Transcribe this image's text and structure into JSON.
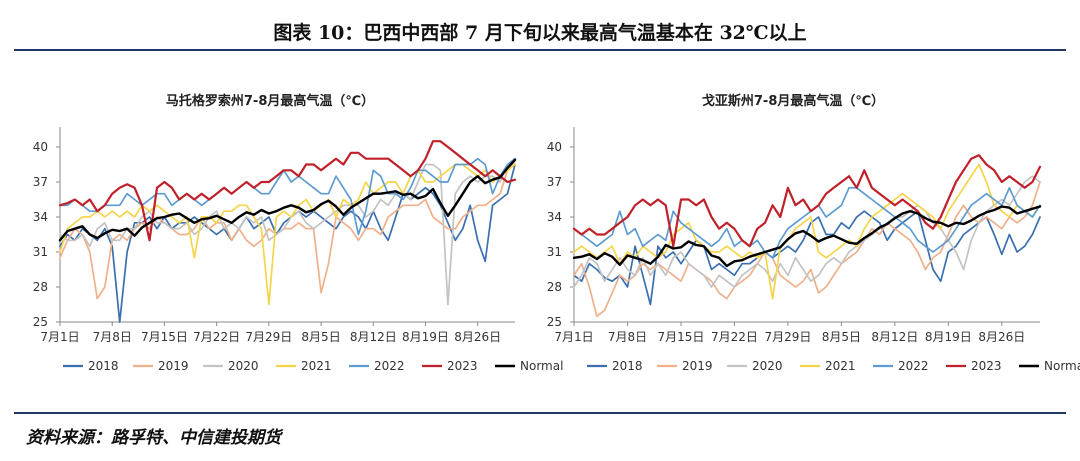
{
  "figure": {
    "title": "图表 10：巴西中西部 7 月下旬以来最高气温基本在 32℃以上",
    "source": "资料来源：路孚特、中信建投期货"
  },
  "colors": {
    "2018": "#3a6fb0",
    "2019": "#f0b08a",
    "2020": "#c3c3c3",
    "2021": "#f6d44a",
    "2022": "#5d9bd1",
    "2023": "#c0202a",
    "Normal": "#000000"
  },
  "chart_data": [
    {
      "type": "line",
      "title": "马托格罗索州7-8月最高气温（℃）",
      "xlabel": "",
      "ylabel": "",
      "ylim": [
        25,
        40
      ],
      "yticks": [
        "25",
        "28",
        "31",
        "34",
        "37",
        "40"
      ],
      "xtick_labels": [
        "7月1日",
        "7月8日",
        "7月15日",
        "7月22日",
        "7月29日",
        "8月5日",
        "8月12日",
        "8月19日",
        "8月26日"
      ],
      "x_count": 62,
      "legend_position": "bottom",
      "series": [
        {
          "name": "2018",
          "values": [
            31.5,
            32.5,
            32.0,
            33.0,
            32.5,
            32.0,
            33.0,
            31.5,
            25.0,
            31.0,
            33.5,
            33.5,
            34.0,
            33.0,
            34.0,
            33.0,
            33.5,
            33.5,
            34.0,
            33.5,
            33.0,
            32.5,
            33.0,
            32.0,
            33.0,
            34.0,
            33.0,
            33.5,
            34.0,
            32.5,
            33.5,
            34.0,
            34.5,
            34.0,
            34.5,
            34.0,
            33.5,
            33.0,
            34.0,
            34.5,
            34.0,
            33.0,
            34.5,
            33.0,
            32.0,
            34.0,
            36.0,
            35.5,
            36.0,
            36.5,
            36.0,
            35.0,
            33.5,
            32.0,
            33.0,
            35.0,
            32.0,
            30.2,
            35.0,
            35.5,
            36.0,
            38.5
          ]
        },
        {
          "name": "2019",
          "values": [
            30.5,
            32.0,
            33.0,
            32.5,
            31.0,
            27.0,
            28.0,
            32.0,
            32.5,
            32.0,
            33.0,
            33.5,
            33.0,
            34.0,
            33.5,
            33.0,
            32.5,
            32.5,
            33.0,
            34.0,
            33.0,
            33.5,
            33.5,
            32.0,
            33.0,
            32.0,
            31.5,
            32.0,
            33.0,
            32.5,
            33.0,
            33.0,
            33.5,
            33.0,
            33.0,
            27.5,
            30.0,
            34.0,
            33.5,
            33.0,
            32.0,
            33.0,
            33.0,
            32.5,
            34.0,
            34.5,
            35.0,
            35.0,
            35.0,
            35.5,
            34.0,
            33.5,
            33.0,
            33.0,
            34.0,
            34.5,
            35.0,
            35.0,
            35.5,
            36.0,
            38.0,
            38.8
          ]
        },
        {
          "name": "2020",
          "values": [
            32.5,
            32.0,
            32.0,
            32.5,
            31.5,
            33.0,
            33.5,
            32.0,
            32.0,
            33.0,
            33.0,
            34.0,
            34.5,
            33.5,
            33.5,
            33.0,
            33.0,
            33.5,
            32.5,
            33.0,
            34.0,
            34.5,
            33.0,
            33.5,
            33.0,
            34.0,
            33.5,
            34.0,
            32.0,
            32.5,
            33.0,
            34.0,
            34.5,
            33.5,
            33.0,
            33.5,
            34.0,
            34.5,
            35.0,
            35.0,
            35.0,
            34.0,
            34.5,
            35.5,
            35.0,
            36.0,
            36.0,
            35.5,
            37.0,
            38.5,
            38.5,
            38.0,
            26.5,
            36.0,
            37.0,
            37.5,
            37.0,
            37.5,
            37.5,
            37.0,
            38.5,
            39.0
          ]
        },
        {
          "name": "2021",
          "values": [
            31.0,
            33.0,
            33.5,
            34.0,
            34.0,
            34.5,
            34.0,
            34.5,
            34.0,
            34.5,
            34.0,
            35.0,
            34.5,
            35.0,
            34.5,
            34.0,
            33.5,
            34.0,
            30.5,
            34.0,
            34.0,
            33.5,
            34.5,
            34.5,
            35.0,
            35.0,
            34.0,
            33.0,
            26.5,
            34.0,
            34.5,
            34.0,
            35.0,
            35.5,
            34.5,
            35.0,
            35.5,
            34.0,
            35.5,
            35.0,
            35.5,
            37.0,
            36.0,
            36.5,
            37.0,
            37.0,
            36.0,
            37.5,
            38.0,
            37.0,
            37.0,
            37.5,
            38.0,
            38.5,
            38.5,
            38.0,
            37.5,
            38.0,
            37.0,
            37.5,
            38.0,
            38.5
          ]
        },
        {
          "name": "2022",
          "values": [
            35.0,
            35.0,
            35.5,
            35.0,
            34.5,
            34.5,
            35.0,
            35.0,
            35.0,
            36.0,
            35.5,
            35.0,
            35.5,
            36.0,
            36.0,
            35.0,
            35.5,
            36.0,
            35.5,
            35.0,
            35.5,
            36.0,
            36.5,
            36.0,
            36.5,
            37.0,
            36.5,
            36.0,
            36.0,
            37.0,
            38.0,
            37.0,
            37.5,
            37.0,
            36.5,
            36.0,
            36.0,
            37.5,
            36.5,
            35.5,
            32.5,
            34.5,
            38.0,
            37.5,
            36.0,
            36.0,
            35.5,
            36.5,
            38.0,
            38.0,
            37.5,
            37.0,
            37.0,
            38.5,
            38.5,
            38.5,
            39.0,
            38.5,
            36.0,
            37.5,
            38.5,
            39.0
          ]
        },
        {
          "name": "2023",
          "values": [
            35.0,
            35.2,
            35.5,
            35.0,
            35.5,
            34.5,
            35.0,
            36.0,
            36.5,
            36.8,
            36.5,
            35.0,
            32.0,
            36.5,
            37.0,
            36.5,
            35.5,
            36.0,
            35.5,
            36.0,
            35.5,
            36.0,
            36.5,
            36.0,
            36.5,
            37.0,
            36.5,
            37.0,
            37.0,
            37.5,
            38.0,
            38.0,
            37.5,
            38.5,
            38.5,
            38.0,
            38.5,
            39.0,
            38.5,
            39.5,
            39.5,
            39.0,
            39.0,
            39.0,
            39.0,
            38.5,
            38.0,
            37.5,
            38.0,
            39.0,
            40.5,
            40.5,
            40.0,
            39.5,
            39.0,
            38.5,
            38.0,
            37.5,
            38.0,
            37.5,
            37.0,
            37.2
          ]
        },
        {
          "name": "Normal",
          "values": [
            32.0,
            32.8,
            33.0,
            33.2,
            32.5,
            32.2,
            32.6,
            32.9,
            32.8,
            33.0,
            32.4,
            33.1,
            33.5,
            33.9,
            34.0,
            34.2,
            34.3,
            33.9,
            33.5,
            33.8,
            33.9,
            34.1,
            33.8,
            33.5,
            34.0,
            34.4,
            34.2,
            34.6,
            34.3,
            34.5,
            34.8,
            35.0,
            34.8,
            34.4,
            34.6,
            35.1,
            35.4,
            34.9,
            34.2,
            34.8,
            35.2,
            35.6,
            36.0,
            36.0,
            36.1,
            36.2,
            35.9,
            36.0,
            35.6,
            35.8,
            36.4,
            35.2,
            34.1,
            35.0,
            36.0,
            37.0,
            37.5,
            36.9,
            37.2,
            37.4,
            38.2,
            38.9
          ]
        }
      ]
    },
    {
      "type": "line",
      "title": "戈亚斯州7-8月最高气温（℃）",
      "xlabel": "",
      "ylabel": "",
      "ylim": [
        25,
        40
      ],
      "yticks": [
        "25",
        "28",
        "31",
        "34",
        "37",
        "40"
      ],
      "xtick_labels": [
        "7月1日",
        "7月8日",
        "7月15日",
        "7月22日",
        "7月29日",
        "8月5日",
        "8月12日",
        "8月19日",
        "8月26日"
      ],
      "x_count": 62,
      "legend_position": "bottom",
      "series": [
        {
          "name": "2018",
          "values": [
            29.0,
            28.5,
            30.0,
            29.5,
            28.8,
            28.5,
            29.0,
            28.0,
            31.5,
            29.0,
            26.5,
            31.5,
            30.5,
            31.0,
            30.0,
            31.0,
            32.0,
            31.5,
            29.5,
            30.0,
            29.5,
            29.0,
            30.0,
            30.0,
            30.5,
            31.0,
            30.5,
            31.0,
            31.5,
            31.0,
            32.0,
            33.5,
            34.0,
            32.5,
            32.5,
            33.5,
            33.0,
            34.0,
            34.5,
            34.0,
            33.5,
            32.0,
            33.0,
            33.5,
            34.0,
            34.5,
            32.0,
            29.5,
            28.5,
            31.0,
            31.5,
            32.5,
            33.0,
            33.5,
            34.0,
            32.5,
            30.8,
            32.5,
            31.0,
            31.5,
            32.5,
            34.0
          ]
        },
        {
          "name": "2019",
          "values": [
            29.0,
            30.0,
            28.0,
            25.5,
            26.0,
            27.5,
            29.0,
            28.5,
            29.0,
            30.0,
            29.5,
            30.0,
            29.5,
            29.0,
            28.5,
            30.0,
            29.5,
            29.0,
            28.5,
            27.5,
            27.0,
            28.0,
            28.5,
            29.0,
            30.0,
            31.0,
            30.5,
            29.0,
            28.5,
            28.0,
            28.5,
            29.5,
            27.5,
            28.0,
            29.0,
            30.0,
            30.5,
            31.0,
            32.0,
            33.0,
            32.5,
            33.5,
            33.0,
            32.5,
            32.0,
            31.0,
            29.5,
            30.5,
            31.0,
            32.5,
            34.0,
            35.0,
            34.0,
            33.5,
            34.0,
            33.5,
            33.0,
            34.0,
            33.5,
            34.0,
            35.0,
            37.0
          ]
        },
        {
          "name": "2020",
          "values": [
            28.0,
            29.0,
            30.5,
            30.0,
            28.5,
            29.5,
            30.5,
            29.5,
            29.0,
            30.5,
            29.0,
            30.0,
            29.0,
            30.5,
            31.0,
            30.0,
            29.5,
            29.0,
            28.0,
            29.0,
            28.5,
            28.0,
            29.0,
            29.5,
            30.0,
            29.5,
            28.5,
            30.0,
            29.0,
            30.5,
            29.5,
            28.5,
            29.0,
            30.0,
            30.5,
            30.0,
            31.0,
            31.5,
            32.0,
            32.5,
            33.0,
            33.5,
            34.0,
            34.0,
            34.5,
            35.0,
            34.5,
            33.5,
            33.0,
            32.0,
            31.0,
            29.5,
            32.0,
            33.5,
            34.5,
            35.0,
            35.5,
            35.0,
            36.0,
            37.0,
            37.5,
            37.0
          ]
        },
        {
          "name": "2021",
          "values": [
            31.0,
            31.5,
            31.0,
            30.5,
            31.0,
            31.5,
            30.0,
            31.0,
            30.5,
            31.5,
            31.0,
            30.5,
            31.0,
            32.5,
            33.0,
            33.5,
            32.0,
            31.5,
            31.0,
            31.0,
            31.5,
            31.0,
            30.5,
            31.0,
            30.5,
            31.0,
            27.0,
            31.5,
            32.0,
            33.0,
            33.5,
            34.0,
            31.0,
            30.5,
            31.0,
            31.5,
            32.0,
            31.5,
            33.0,
            34.0,
            34.5,
            35.0,
            35.5,
            36.0,
            35.5,
            35.0,
            34.5,
            34.0,
            33.0,
            34.5,
            35.5,
            36.5,
            37.5,
            38.5,
            37.0,
            35.0,
            34.5,
            34.0,
            35.0,
            34.5,
            34.0,
            35.0
          ]
        },
        {
          "name": "2022",
          "values": [
            33.0,
            32.5,
            32.0,
            31.5,
            32.0,
            32.5,
            34.5,
            32.5,
            33.0,
            31.5,
            32.0,
            32.5,
            32.0,
            34.5,
            33.5,
            33.0,
            32.5,
            32.0,
            31.5,
            32.0,
            33.0,
            31.5,
            32.0,
            31.5,
            32.0,
            31.0,
            30.5,
            32.0,
            33.0,
            33.5,
            34.0,
            34.5,
            35.0,
            34.0,
            34.5,
            35.0,
            36.5,
            36.5,
            36.0,
            35.5,
            35.0,
            34.5,
            34.0,
            33.5,
            33.0,
            32.0,
            31.5,
            31.0,
            31.5,
            32.0,
            33.0,
            34.0,
            35.0,
            35.5,
            36.0,
            35.5,
            35.0,
            36.5,
            35.0,
            34.5,
            34.0,
            35.0
          ]
        },
        {
          "name": "2023",
          "values": [
            33.0,
            32.5,
            33.0,
            32.5,
            32.5,
            33.0,
            33.5,
            34.0,
            35.0,
            35.5,
            35.0,
            35.5,
            35.0,
            31.5,
            35.5,
            35.5,
            35.0,
            35.5,
            34.0,
            33.0,
            33.5,
            33.0,
            32.0,
            31.5,
            33.0,
            33.5,
            35.0,
            34.0,
            36.5,
            35.0,
            35.5,
            34.5,
            35.0,
            36.0,
            36.5,
            37.0,
            37.5,
            36.5,
            38.0,
            36.5,
            36.0,
            35.5,
            35.0,
            35.5,
            35.0,
            34.5,
            33.5,
            33.0,
            34.0,
            35.5,
            37.0,
            38.0,
            39.0,
            39.3,
            38.5,
            38.0,
            37.0,
            37.5,
            37.0,
            36.5,
            37.0,
            38.3
          ]
        },
        {
          "name": "Normal",
          "values": [
            30.5,
            30.6,
            30.8,
            30.4,
            30.9,
            30.6,
            29.9,
            30.7,
            30.5,
            30.3,
            30.0,
            30.6,
            31.6,
            31.3,
            31.4,
            31.9,
            31.6,
            31.5,
            30.7,
            30.5,
            29.8,
            30.2,
            30.3,
            30.6,
            30.8,
            31.0,
            31.2,
            31.4,
            32.1,
            32.6,
            32.8,
            32.4,
            31.9,
            32.2,
            32.4,
            32.1,
            31.8,
            31.7,
            32.2,
            32.6,
            33.1,
            33.4,
            33.9,
            34.3,
            34.5,
            34.3,
            33.9,
            33.6,
            33.5,
            33.2,
            33.5,
            33.4,
            33.7,
            34.1,
            34.4,
            34.6,
            34.9,
            34.8,
            34.3,
            34.5,
            34.7,
            34.9
          ]
        }
      ]
    }
  ]
}
